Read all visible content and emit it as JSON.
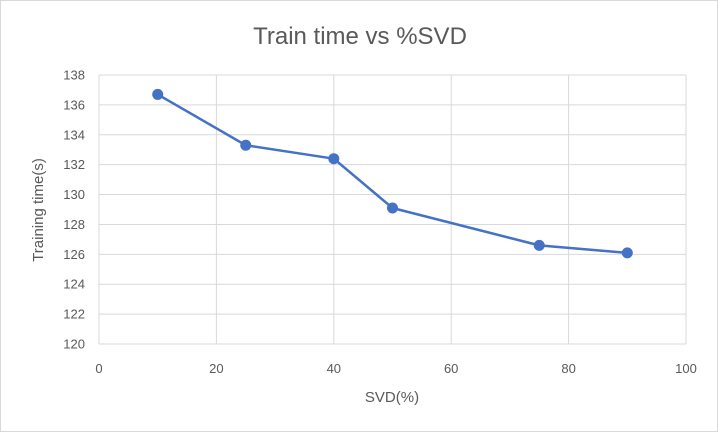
{
  "chart_data": {
    "type": "scatter",
    "title": "Train time vs %SVD",
    "xlabel": "SVD(%)",
    "ylabel": "Training time(s)",
    "xlim": [
      0,
      100
    ],
    "ylim": [
      120,
      138
    ],
    "x_ticks": [
      0,
      20,
      40,
      60,
      80,
      100
    ],
    "y_ticks": [
      120,
      122,
      124,
      126,
      128,
      130,
      132,
      134,
      136,
      138
    ],
    "grid": true,
    "legend": "none",
    "series": [
      {
        "x": [
          10,
          25,
          40,
          50,
          75,
          90
        ],
        "y": [
          136.7,
          133.3,
          132.4,
          129.1,
          126.6,
          126.1
        ],
        "color": "#4472c4",
        "line": "straight",
        "marker": "circle"
      }
    ]
  }
}
